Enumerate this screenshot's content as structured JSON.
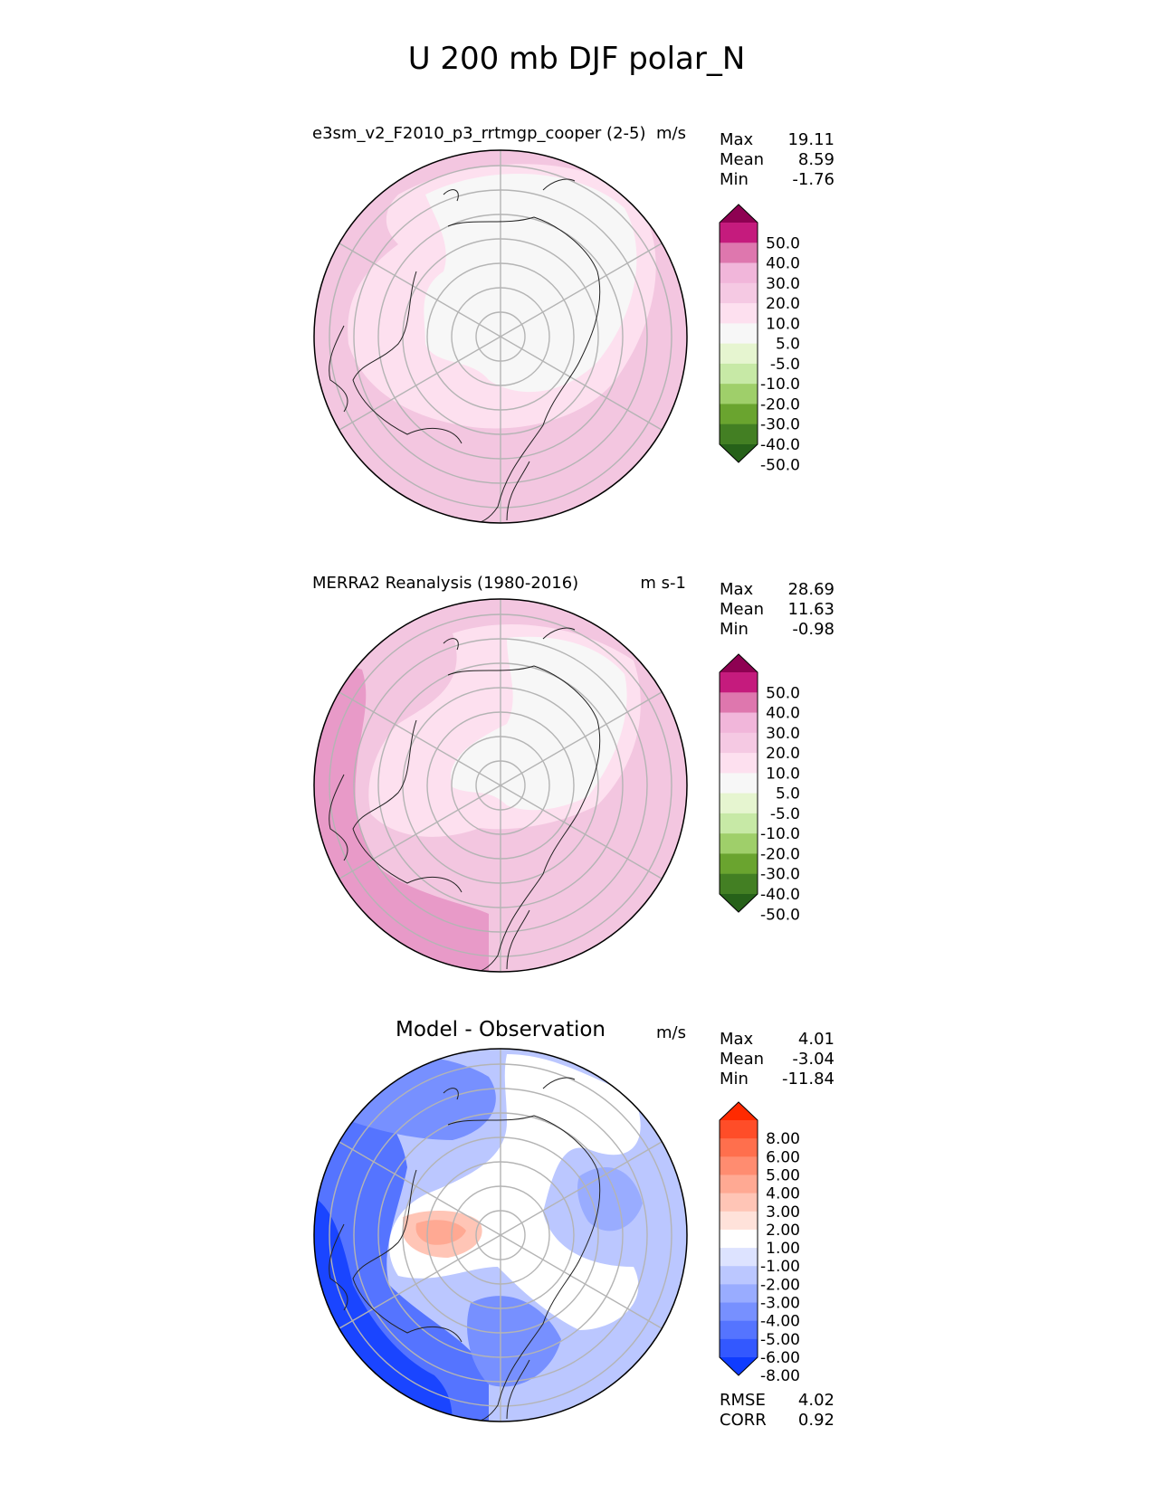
{
  "figure_title": "U 200 mb DJF polar_N",
  "chart_data": [
    {
      "type": "heatmap",
      "projection": "north-polar-stereographic",
      "title": "e3sm_v2_F2010_p3_rrtmgp_cooper (2-5)",
      "units": "m/s",
      "stats": {
        "max": "19.11",
        "mean": "8.59",
        "min": "-1.76"
      },
      "colorbar": {
        "levels": [
          "50.0",
          "40.0",
          "30.0",
          "20.0",
          "10.0",
          "5.0",
          "-5.0",
          "-10.0",
          "-20.0",
          "-30.0",
          "-40.0",
          "-50.0"
        ],
        "colors": [
          "#8e0152",
          "#c51b7d",
          "#de77ae",
          "#f1b6da",
          "#f5c9e3",
          "#fde0ef",
          "#f7f7f7",
          "#e6f5d0",
          "#c7e9a6",
          "#9fcf6a",
          "#6aa42f",
          "#437f23",
          "#266119"
        ]
      },
      "fill_colors": {
        "ocean": "#f3c6e0",
        "inner": "#fde0ef",
        "core": "#f7f7f7"
      }
    },
    {
      "type": "heatmap",
      "projection": "north-polar-stereographic",
      "title": "MERRA2 Reanalysis (1980-2016)",
      "units": "m s-1",
      "stats": {
        "max": "28.69",
        "mean": "11.63",
        "min": "-0.98"
      },
      "colorbar": {
        "levels": [
          "50.0",
          "40.0",
          "30.0",
          "20.0",
          "10.0",
          "5.0",
          "-5.0",
          "-10.0",
          "-20.0",
          "-30.0",
          "-40.0",
          "-50.0"
        ],
        "colors": [
          "#8e0152",
          "#c51b7d",
          "#de77ae",
          "#f1b6da",
          "#f5c9e3",
          "#fde0ef",
          "#f7f7f7",
          "#e6f5d0",
          "#c7e9a6",
          "#9fcf6a",
          "#6aa42f",
          "#437f23",
          "#266119"
        ]
      },
      "fill_colors": {
        "ocean": "#f3c6e0",
        "strong": "#e89ac8",
        "inner": "#fde0ef",
        "core": "#f7f7f7"
      }
    },
    {
      "type": "heatmap",
      "projection": "north-polar-stereographic",
      "title": "Model - Observation",
      "units": "m/s",
      "stats": {
        "max": "4.01",
        "mean": "-3.04",
        "min": "-11.84"
      },
      "colorbar": {
        "levels": [
          "8.00",
          "6.00",
          "5.00",
          "4.00",
          "3.00",
          "2.00",
          "1.00",
          "-1.00",
          "-2.00",
          "-3.00",
          "-4.00",
          "-5.00",
          "-6.00",
          "-8.00"
        ],
        "colors": [
          "#ff2a00",
          "#ff4d28",
          "#ff6f4d",
          "#ff8c70",
          "#ffa993",
          "#ffc5b6",
          "#ffe2da",
          "#ffffff",
          "#dde3ff",
          "#bbc7ff",
          "#99acff",
          "#7790ff",
          "#5574ff",
          "#3358ff",
          "#0f3cff"
        ]
      },
      "metrics": {
        "rmse_label": "RMSE",
        "rmse": "4.02",
        "corr_label": "CORR",
        "corr": "0.92"
      }
    }
  ]
}
